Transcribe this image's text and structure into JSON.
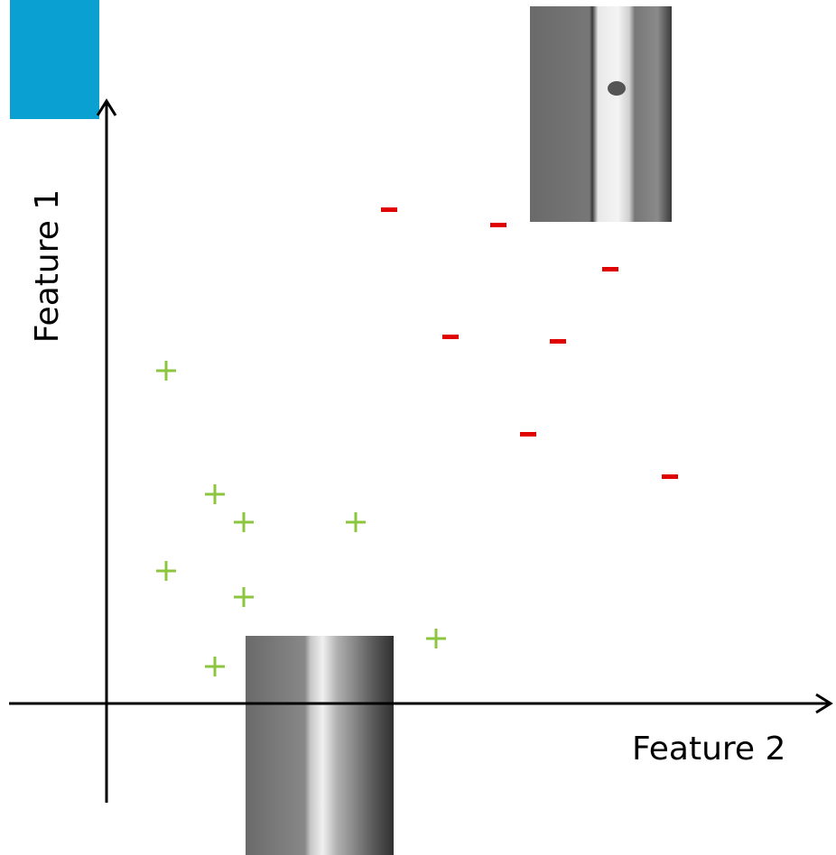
{
  "axes": {
    "y_label": "Feature 1",
    "x_label": "Feature 2"
  }
}
